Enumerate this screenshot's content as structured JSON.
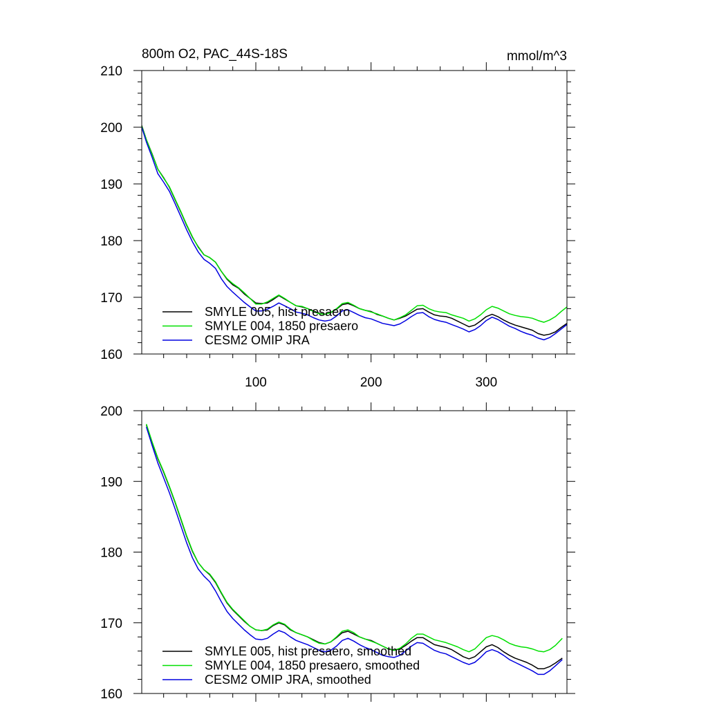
{
  "chart_data": [
    {
      "type": "line",
      "title": "800m O2, PAC_44S-18S",
      "units": "mmol/m^3",
      "xlim": [
        1,
        370
      ],
      "ylim": [
        160,
        210
      ],
      "yticks": [
        160,
        170,
        180,
        190,
        200,
        210
      ],
      "xticks": [
        100,
        200,
        300
      ],
      "x_tick_labels_shown": true,
      "legend_position": "bottom-left",
      "x": [
        1,
        5,
        10,
        15,
        20,
        25,
        30,
        35,
        40,
        45,
        50,
        55,
        60,
        65,
        70,
        75,
        80,
        85,
        90,
        95,
        100,
        105,
        110,
        115,
        120,
        125,
        130,
        135,
        140,
        145,
        150,
        155,
        160,
        165,
        170,
        175,
        180,
        185,
        190,
        195,
        200,
        205,
        210,
        215,
        220,
        225,
        230,
        235,
        240,
        245,
        250,
        255,
        260,
        265,
        270,
        275,
        280,
        285,
        290,
        295,
        300,
        305,
        310,
        315,
        320,
        325,
        330,
        335,
        340,
        345,
        350,
        355,
        360,
        365,
        370
      ],
      "series": [
        {
          "name": "SMYLE 005, hist presaero",
          "color": "#000000",
          "values": [
            200.3,
            197.8,
            195.3,
            192.6,
            191.1,
            189.4,
            187.2,
            185.0,
            182.7,
            180.6,
            178.9,
            177.5,
            177.0,
            176.2,
            174.6,
            173.2,
            172.2,
            171.6,
            170.6,
            169.8,
            169.0,
            168.9,
            169.0,
            169.6,
            170.3,
            169.7,
            169.1,
            168.5,
            168.3,
            168.0,
            167.6,
            167.2,
            167.0,
            167.3,
            167.9,
            168.7,
            168.9,
            168.5,
            168.0,
            167.7,
            167.5,
            167.0,
            166.7,
            166.3,
            166.0,
            166.3,
            166.7,
            167.3,
            167.9,
            168.0,
            167.4,
            166.9,
            166.7,
            166.6,
            166.3,
            165.8,
            165.3,
            164.8,
            165.1,
            165.8,
            166.6,
            167.0,
            166.6,
            166.0,
            165.5,
            165.1,
            164.8,
            164.5,
            164.2,
            163.6,
            163.3,
            163.5,
            163.9,
            164.7,
            165.4
          ]
        },
        {
          "name": "SMYLE 004, 1850 presaero",
          "color": "#00e000",
          "values": [
            200.2,
            197.8,
            195.2,
            192.6,
            191.0,
            189.5,
            187.3,
            185.1,
            182.8,
            180.7,
            178.8,
            177.5,
            177.0,
            176.2,
            174.6,
            173.3,
            172.4,
            171.7,
            170.8,
            169.8,
            168.8,
            168.8,
            169.2,
            169.8,
            170.4,
            169.8,
            169.1,
            168.5,
            168.4,
            168.0,
            167.5,
            167.1,
            167.0,
            167.3,
            168.0,
            168.9,
            169.1,
            168.6,
            168.0,
            167.7,
            167.4,
            167.1,
            166.7,
            166.3,
            166.0,
            166.4,
            166.9,
            167.7,
            168.5,
            168.6,
            168.0,
            167.6,
            167.4,
            167.3,
            166.9,
            166.6,
            166.3,
            165.8,
            166.2,
            166.9,
            167.8,
            168.4,
            168.1,
            167.6,
            167.1,
            166.8,
            166.6,
            166.5,
            166.3,
            165.9,
            165.6,
            166.0,
            166.6,
            167.5,
            168.3
          ]
        },
        {
          "name": "CESM2 OMIP JRA",
          "color": "#0000e0",
          "values": [
            200.0,
            197.4,
            194.7,
            191.8,
            190.3,
            188.7,
            186.5,
            184.2,
            181.9,
            179.8,
            178.0,
            176.7,
            176.0,
            175.1,
            173.3,
            171.9,
            170.9,
            170.0,
            169.1,
            168.3,
            167.6,
            167.6,
            167.9,
            168.4,
            169.0,
            168.5,
            168.0,
            167.4,
            167.2,
            166.9,
            166.4,
            166.0,
            165.8,
            166.0,
            166.7,
            167.6,
            167.8,
            167.3,
            166.8,
            166.4,
            166.2,
            165.8,
            165.4,
            165.2,
            165.0,
            165.3,
            165.9,
            166.6,
            167.2,
            167.3,
            166.6,
            166.1,
            165.8,
            165.6,
            165.2,
            164.8,
            164.4,
            163.9,
            164.3,
            165.0,
            165.9,
            166.5,
            166.1,
            165.5,
            164.9,
            164.5,
            164.0,
            163.6,
            163.3,
            162.8,
            162.5,
            162.9,
            163.6,
            164.4,
            165.2
          ]
        }
      ]
    },
    {
      "type": "line",
      "title": "",
      "xlim": [
        1,
        370
      ],
      "ylim": [
        160,
        200
      ],
      "yticks": [
        160,
        170,
        180,
        190,
        200
      ],
      "xticks": [
        100,
        200,
        300
      ],
      "x_tick_labels_shown": false,
      "legend_position": "bottom-left",
      "x": [
        5,
        10,
        15,
        20,
        25,
        30,
        35,
        40,
        45,
        50,
        55,
        60,
        65,
        70,
        75,
        80,
        85,
        90,
        95,
        100,
        105,
        110,
        115,
        120,
        125,
        130,
        135,
        140,
        145,
        150,
        155,
        160,
        165,
        170,
        175,
        180,
        185,
        190,
        195,
        200,
        205,
        210,
        215,
        220,
        225,
        230,
        235,
        240,
        245,
        250,
        255,
        260,
        265,
        270,
        275,
        280,
        285,
        290,
        295,
        300,
        305,
        310,
        315,
        320,
        325,
        330,
        335,
        340,
        345,
        350,
        355,
        360,
        366
      ],
      "series": [
        {
          "name": "SMYLE 005, hist presaero, smoothed",
          "color": "#000000",
          "values": [
            198.0,
            195.5,
            193.2,
            191.3,
            189.2,
            187.0,
            184.6,
            182.2,
            180.1,
            178.5,
            177.5,
            176.8,
            175.7,
            174.2,
            172.8,
            171.8,
            171.0,
            170.2,
            169.5,
            169.0,
            168.9,
            169.0,
            169.6,
            170.0,
            169.7,
            169.0,
            168.6,
            168.3,
            168.0,
            167.6,
            167.2,
            167.0,
            167.3,
            167.9,
            168.6,
            168.8,
            168.4,
            168.0,
            167.7,
            167.5,
            167.1,
            166.7,
            166.3,
            166.1,
            166.3,
            166.8,
            167.4,
            167.9,
            167.9,
            167.4,
            166.9,
            166.7,
            166.5,
            166.2,
            165.7,
            165.2,
            164.9,
            165.2,
            165.9,
            166.6,
            166.9,
            166.5,
            165.9,
            165.4,
            165.0,
            164.7,
            164.4,
            164.0,
            163.5,
            163.5,
            163.8,
            164.3,
            165.0
          ]
        },
        {
          "name": "SMYLE 004, 1850 presaero, smoothed",
          "color": "#00e000",
          "values": [
            198.1,
            195.6,
            193.3,
            191.4,
            189.3,
            187.1,
            184.7,
            182.3,
            180.2,
            178.5,
            177.5,
            176.9,
            175.8,
            174.3,
            172.9,
            171.9,
            171.1,
            170.3,
            169.5,
            169.0,
            168.9,
            169.1,
            169.7,
            170.1,
            169.8,
            169.1,
            168.6,
            168.3,
            168.0,
            167.5,
            167.1,
            167.0,
            167.3,
            168.0,
            168.8,
            169.0,
            168.6,
            168.0,
            167.7,
            167.4,
            167.1,
            166.7,
            166.3,
            166.1,
            166.4,
            167.0,
            167.8,
            168.4,
            168.4,
            168.0,
            167.6,
            167.4,
            167.2,
            166.9,
            166.6,
            166.2,
            165.9,
            166.3,
            167.1,
            167.9,
            168.2,
            168.0,
            167.6,
            167.1,
            166.8,
            166.6,
            166.5,
            166.3,
            166.0,
            165.9,
            166.2,
            166.8,
            167.8
          ]
        },
        {
          "name": "CESM2 OMIP JRA, smoothed",
          "color": "#0000e0",
          "values": [
            197.7,
            195.1,
            192.6,
            190.5,
            188.4,
            186.1,
            183.7,
            181.3,
            179.2,
            177.6,
            176.6,
            175.8,
            174.5,
            173.0,
            171.6,
            170.6,
            169.8,
            169.0,
            168.3,
            167.7,
            167.6,
            167.8,
            168.4,
            168.9,
            168.6,
            168.0,
            167.5,
            167.2,
            166.9,
            166.5,
            166.1,
            165.9,
            166.1,
            166.7,
            167.5,
            167.8,
            167.4,
            166.9,
            166.5,
            166.2,
            165.8,
            165.4,
            165.2,
            165.1,
            165.4,
            166.0,
            166.7,
            167.2,
            167.1,
            166.6,
            166.1,
            165.8,
            165.6,
            165.2,
            164.8,
            164.4,
            164.1,
            164.4,
            165.1,
            165.9,
            166.2,
            165.9,
            165.4,
            164.8,
            164.4,
            164.0,
            163.6,
            163.2,
            162.7,
            162.7,
            163.2,
            163.9,
            164.8
          ]
        }
      ]
    }
  ]
}
